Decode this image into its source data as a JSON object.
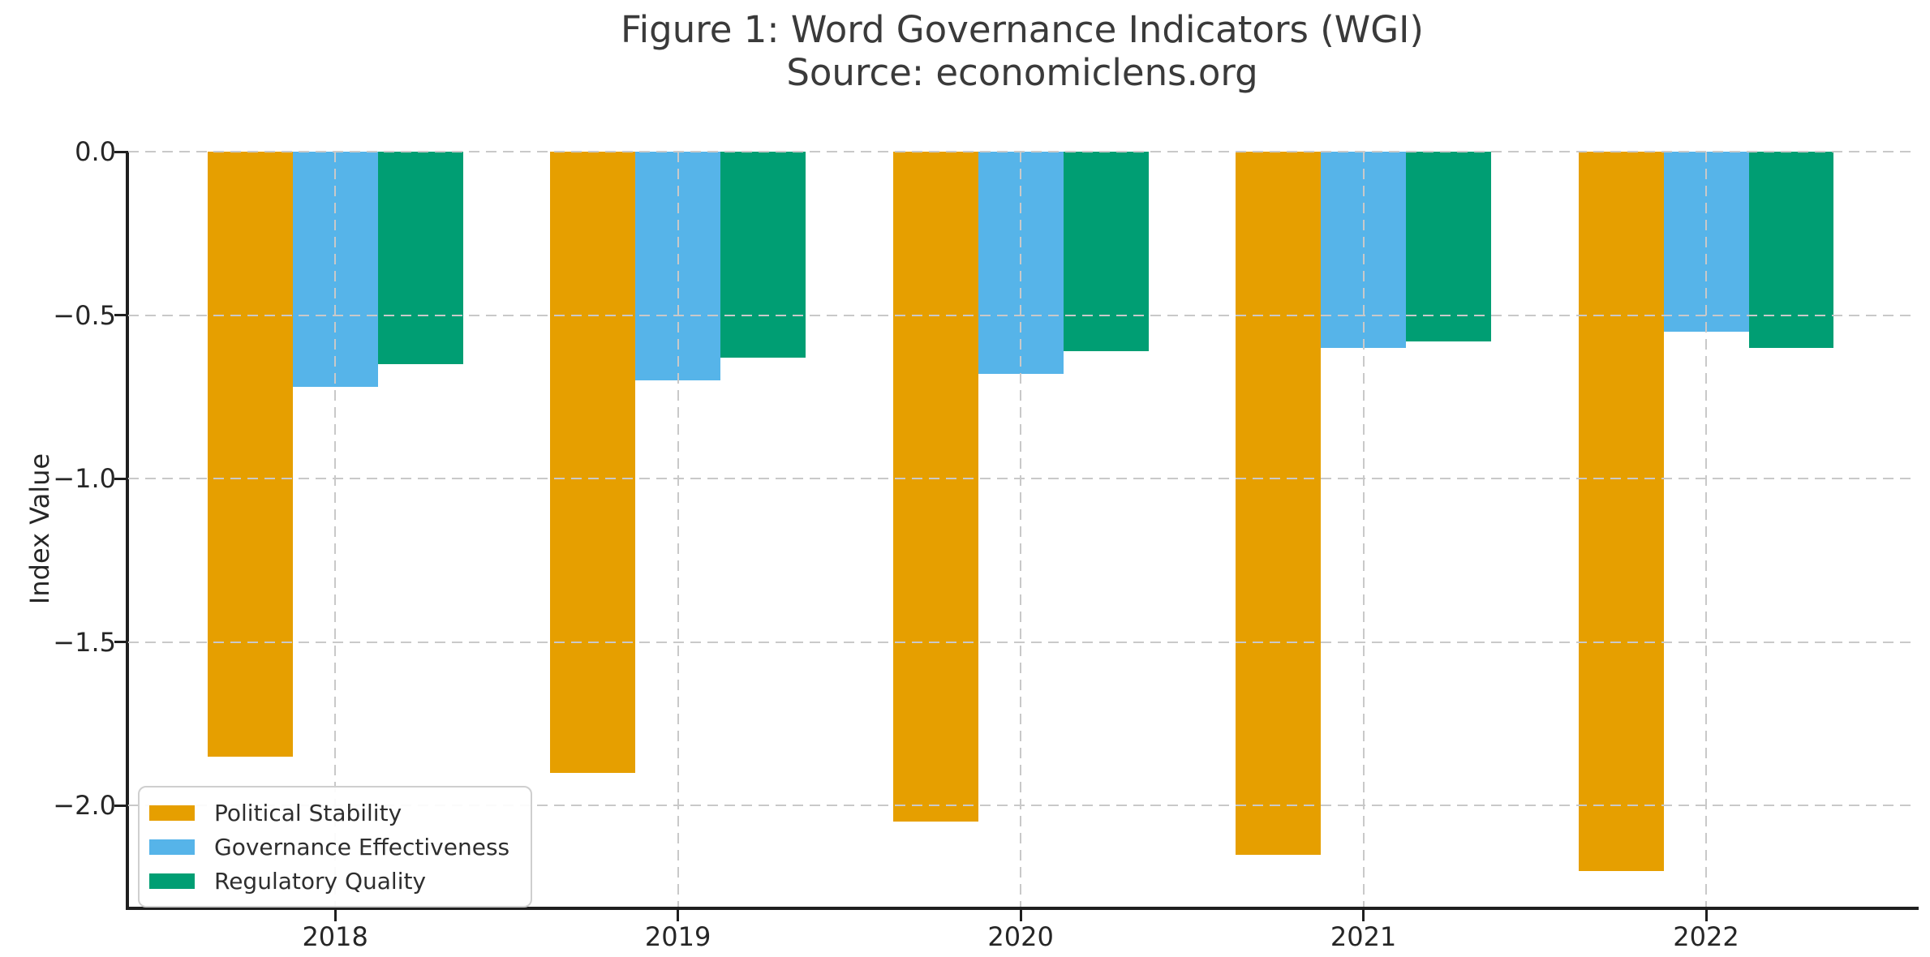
{
  "figure": {
    "title": "Figure 1: Word Governance Indicators (WGI)",
    "subtitle": "Source: economiclens.org"
  },
  "chart_data": {
    "type": "bar",
    "title": "Figure 1: Word Governance Indicators (WGI)",
    "subtitle": "Source: economiclens.org",
    "xlabel": "",
    "ylabel": "Index Value",
    "categories": [
      "2018",
      "2019",
      "2020",
      "2021",
      "2022"
    ],
    "series": [
      {
        "name": "Political Stability",
        "color": "#E69F00",
        "values": [
          -1.85,
          -1.9,
          -2.05,
          -2.15,
          -2.2
        ]
      },
      {
        "name": "Governance Effectiveness",
        "color": "#56B4E9",
        "values": [
          -0.72,
          -0.7,
          -0.68,
          -0.6,
          -0.55
        ]
      },
      {
        "name": "Regulatory Quality",
        "color": "#009E73",
        "values": [
          -0.65,
          -0.63,
          -0.61,
          -0.58,
          -0.6
        ]
      }
    ],
    "ylim": [
      -2.31,
      0
    ],
    "yticks": [
      0,
      -0.5,
      -1,
      -1.5,
      -2
    ],
    "ytick_labels": [
      "0.0",
      "−0.5",
      "−1.0",
      "−1.5",
      "−2.0"
    ],
    "grid": true,
    "grid_style": "dashed",
    "axis_color": "#1f1f1f",
    "grid_color": "#c9c9c9",
    "legend_position": "lower-left",
    "bar_width_fraction": 0.2485
  }
}
